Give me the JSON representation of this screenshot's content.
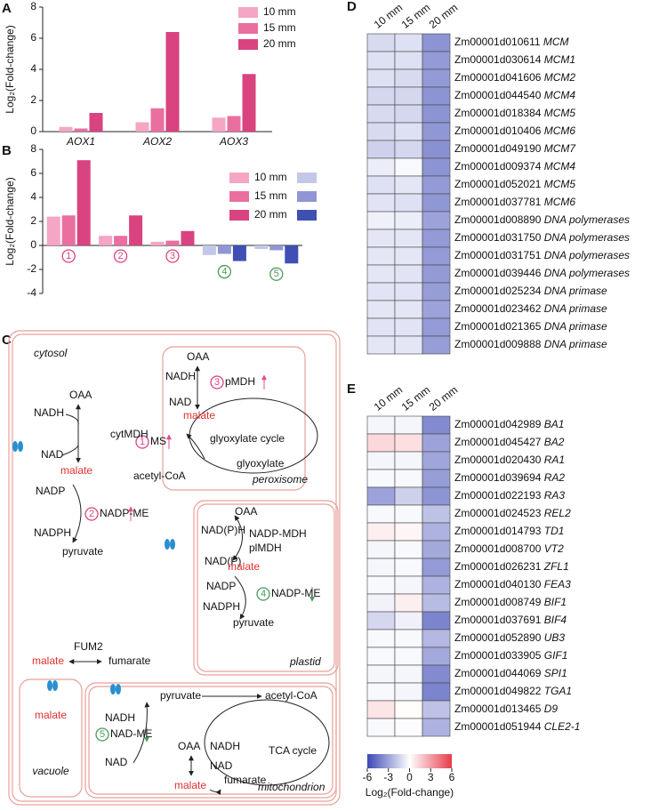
{
  "chart_data": [
    {
      "type": "bar",
      "panel": "A",
      "ylabel": "Log₂(Fold-change)",
      "categories": [
        "AOX1",
        "AOX2",
        "AOX3"
      ],
      "series": [
        {
          "name": "10 mm",
          "color": "#f4a6c4",
          "values": [
            0.3,
            0.6,
            0.9
          ]
        },
        {
          "name": "15 mm",
          "color": "#ea6fa0",
          "values": [
            0.2,
            1.5,
            1.0
          ]
        },
        {
          "name": "20 mm",
          "color": "#d9437f",
          "values": [
            1.2,
            6.4,
            3.7
          ]
        }
      ],
      "ylim": [
        0,
        8
      ],
      "yticks": [
        0,
        2,
        4,
        6,
        8
      ]
    },
    {
      "type": "bar",
      "panel": "B",
      "ylabel": "Log₂(Fold-change)",
      "categories": [
        "1",
        "2",
        "3",
        "4",
        "5"
      ],
      "category_colors": [
        "#d9437f",
        "#d9437f",
        "#d9437f",
        "#4a9a5a",
        "#4a9a5a"
      ],
      "series": [
        {
          "name": "10 mm",
          "colors": [
            "#f4a6c4",
            "#f4a6c4",
            "#f4a6c4",
            "#c3c7e8",
            "#c3c7e8"
          ],
          "values": [
            2.4,
            0.8,
            0.3,
            -0.8,
            -0.3
          ]
        },
        {
          "name": "15 mm",
          "colors": [
            "#ea6fa0",
            "#ea6fa0",
            "#ea6fa0",
            "#8f96d3",
            "#8f96d3"
          ],
          "values": [
            2.5,
            0.8,
            0.4,
            -0.7,
            -0.4
          ]
        },
        {
          "name": "20 mm",
          "colors": [
            "#d9437f",
            "#d9437f",
            "#d9437f",
            "#3f4fb3",
            "#3f4fb3"
          ],
          "values": [
            7.1,
            2.5,
            1.2,
            -1.3,
            -1.5
          ]
        }
      ],
      "ylim": [
        -4,
        8
      ],
      "yticks": [
        -4,
        -2,
        0,
        2,
        4,
        6,
        8
      ]
    },
    {
      "type": "heatmap",
      "panel": "D",
      "columns": [
        "10 mm",
        "15 mm",
        "20 mm"
      ],
      "row_ids": [
        "Zm00001d010611",
        "Zm00001d030614",
        "Zm00001d041606",
        "Zm00001d044540",
        "Zm00001d018384",
        "Zm00001d010406",
        "Zm00001d049190",
        "Zm00001d009374",
        "Zm00001d052021",
        "Zm00001d037781",
        "Zm00001d008890",
        "Zm00001d031750",
        "Zm00001d031751",
        "Zm00001d039446",
        "Zm00001d025234",
        "Zm00001d023462",
        "Zm00001d021365",
        "Zm00001d009888"
      ],
      "row_genes": [
        "MCM",
        "MCM1",
        "MCM2",
        "MCM4",
        "MCM5",
        "MCM6",
        "MCM7",
        "MCM4",
        "MCM5",
        "MCM6",
        "DNA polymerases",
        "DNA polymerases",
        "DNA polymerases",
        "DNA polymerases",
        "DNA primase",
        "DNA primase",
        "DNA primase",
        "DNA primase"
      ],
      "values": [
        [
          -1.2,
          -1.0,
          -3.5
        ],
        [
          -1.0,
          -1.0,
          -3.3
        ],
        [
          -1.0,
          -1.2,
          -3.3
        ],
        [
          -1.3,
          -1.3,
          -3.5
        ],
        [
          -1.2,
          -1.3,
          -3.5
        ],
        [
          -1.2,
          -1.0,
          -3.4
        ],
        [
          -1.5,
          -1.3,
          -3.6
        ],
        [
          -0.6,
          -0.2,
          -3.5
        ],
        [
          -1.0,
          -0.8,
          -3.3
        ],
        [
          -0.9,
          -1.0,
          -3.4
        ],
        [
          -0.5,
          -0.6,
          -3.0
        ],
        [
          -0.8,
          -0.8,
          -3.3
        ],
        [
          -0.8,
          -0.8,
          -3.3
        ],
        [
          -0.8,
          -0.9,
          -3.3
        ],
        [
          -0.9,
          -0.9,
          -3.2
        ],
        [
          -0.8,
          -0.8,
          -3.0
        ],
        [
          -0.9,
          -0.9,
          -3.3
        ],
        [
          -0.8,
          -0.8,
          -3.2
        ]
      ],
      "zlim": [
        -6,
        6
      ],
      "colors": [
        "#3b47b4",
        "#ffffff",
        "#e63c4c"
      ]
    },
    {
      "type": "heatmap",
      "panel": "E",
      "columns": [
        "10 mm",
        "15 mm",
        "20 mm"
      ],
      "row_ids": [
        "Zm00001d042989",
        "Zm00001d045427",
        "Zm00001d020430",
        "Zm00001d039694",
        "Zm00001d022193",
        "Zm00001d024523",
        "Zm00001d014793",
        "Zm00001d008700",
        "Zm00001d026231",
        "Zm00001d040130",
        "Zm00001d008749",
        "Zm00001d037691",
        "Zm00001d052890",
        "Zm00001d033905",
        "Zm00001d044069",
        "Zm00001d049822",
        "Zm00001d013465",
        "Zm00001d051944"
      ],
      "row_genes": [
        "BA1",
        "BA2",
        "RA1",
        "RA2",
        "RA3",
        "REL2",
        "TD1",
        "VT2",
        "ZFL1",
        "FEA3",
        "BIF1",
        "BIF4",
        "UB3",
        "GIF1",
        "SPI1",
        "TGA1",
        "D9",
        "CLE2-1"
      ],
      "values": [
        [
          -0.3,
          -0.3,
          -3.8
        ],
        [
          1.2,
          1.0,
          -3.0
        ],
        [
          -0.3,
          -0.3,
          -2.9
        ],
        [
          -0.2,
          -0.2,
          -3.2
        ],
        [
          -3.0,
          -1.5,
          -3.5
        ],
        [
          -0.2,
          -0.2,
          -2.0
        ],
        [
          0.5,
          0.3,
          -2.5
        ],
        [
          -0.3,
          -0.2,
          -2.8
        ],
        [
          -0.3,
          -0.2,
          -3.3
        ],
        [
          -0.2,
          -0.3,
          -2.5
        ],
        [
          -0.4,
          0.5,
          -2.2
        ],
        [
          -1.3,
          -0.5,
          -4.0
        ],
        [
          -0.2,
          -0.2,
          -2.3
        ],
        [
          -0.2,
          -0.2,
          -2.8
        ],
        [
          -0.3,
          -0.3,
          -3.8
        ],
        [
          -0.2,
          -0.3,
          -4.0
        ],
        [
          0.8,
          0.1,
          -2.0
        ],
        [
          -0.2,
          -0.1,
          -2.5
        ]
      ],
      "zlim": [
        -6,
        6
      ],
      "colors": [
        "#3b47b4",
        "#ffffff",
        "#e63c4c"
      ],
      "colorbar_ticks": [
        -6,
        -3,
        0,
        3,
        6
      ],
      "colorbar_label": "Log₂(Fold-change)"
    }
  ],
  "diagram": {
    "panel": "C",
    "labels": [
      "cytosol",
      "OAA",
      "NADH",
      "cytMDH",
      "NAD",
      "malate",
      "NADP",
      "2",
      "NADP-ME",
      "NADPH",
      "pyruvate",
      "FUM2",
      "malate",
      "fumarate",
      "OAA",
      "NADH",
      "3",
      "pMDH",
      "NAD",
      "malate",
      "glyoxylate cycle",
      "1",
      "MS",
      "acetyl-CoA",
      "glyoxylate",
      "peroxisome",
      "OAA",
      "NAD(P)H",
      "NADP-MDH",
      "plMDH",
      "NAD(P)",
      "malate",
      "NADP",
      "4",
      "NADP-ME",
      "NADPH",
      "pyruvate",
      "plastid",
      "malate",
      "vacuole",
      "pyruvate",
      "acetyl-CoA",
      "NADH",
      "5",
      "NAD-ME",
      "NAD",
      "OAA",
      "NADH",
      "NAD",
      "malate",
      "fumarate",
      "TCA cycle",
      "mitochondrion"
    ]
  }
}
